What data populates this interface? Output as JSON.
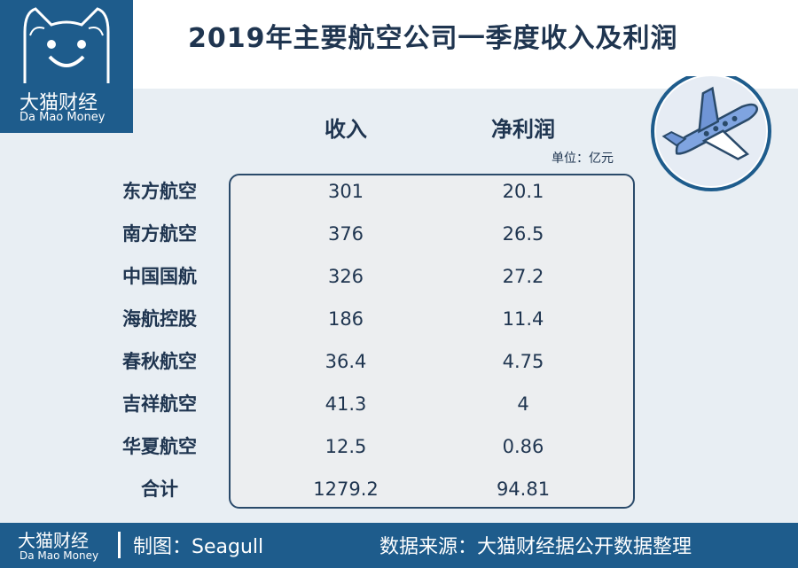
{
  "header": {
    "title": "2019年主要航空公司一季度收入及利润"
  },
  "logo": {
    "name_cn": "大猫财经",
    "name_en": "Da Mao Money"
  },
  "table": {
    "columns": [
      "收入",
      "净利润"
    ],
    "unit": "单位：亿元",
    "rows": [
      {
        "label": "东方航空",
        "income": "301",
        "profit": "20.1"
      },
      {
        "label": "南方航空",
        "income": "376",
        "profit": "26.5"
      },
      {
        "label": "中国国航",
        "income": "326",
        "profit": "27.2"
      },
      {
        "label": "海航控股",
        "income": "186",
        "profit": "11.4"
      },
      {
        "label": "春秋航空",
        "income": "36.4",
        "profit": "4.75"
      },
      {
        "label": "吉祥航空",
        "income": "41.3",
        "profit": "4"
      },
      {
        "label": "华夏航空",
        "income": "12.5",
        "profit": "0.86"
      },
      {
        "label": "合计",
        "income": "1279.2",
        "profit": "94.81"
      }
    ]
  },
  "footer": {
    "brand_cn": "大猫财经",
    "brand_en": "Da Mao Money",
    "maker": "制图：Seagull",
    "source": "数据来源：大猫财经据公开数据整理"
  },
  "colors": {
    "brand_blue": "#1e5c8c",
    "text_dark": "#1f3550",
    "plane_blue": "#7fa4e0"
  },
  "icons": {
    "logo": "cat-face-icon",
    "badge": "airplane-icon"
  }
}
